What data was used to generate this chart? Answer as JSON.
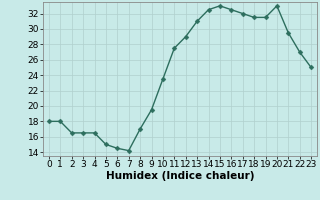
{
  "x": [
    0,
    1,
    2,
    3,
    4,
    5,
    6,
    7,
    8,
    9,
    10,
    11,
    12,
    13,
    14,
    15,
    16,
    17,
    18,
    19,
    20,
    21,
    22,
    23
  ],
  "y": [
    18,
    18,
    16.5,
    16.5,
    16.5,
    15,
    14.5,
    14.2,
    17,
    19.5,
    23.5,
    27.5,
    29,
    31,
    32.5,
    33,
    32.5,
    32,
    31.5,
    31.5,
    33,
    29.5,
    27,
    25
  ],
  "line_color": "#2d6e5e",
  "marker_color": "#2d6e5e",
  "bg_color": "#c8eae8",
  "grid_color": "#b0d0ce",
  "xlabel": "Humidex (Indice chaleur)",
  "ylim": [
    13.5,
    33.5
  ],
  "xlim": [
    -0.5,
    23.5
  ],
  "yticks": [
    14,
    16,
    18,
    20,
    22,
    24,
    26,
    28,
    30,
    32
  ],
  "xticks": [
    0,
    1,
    2,
    3,
    4,
    5,
    6,
    7,
    8,
    9,
    10,
    11,
    12,
    13,
    14,
    15,
    16,
    17,
    18,
    19,
    20,
    21,
    22,
    23
  ],
  "xlabel_fontsize": 7.5,
  "tick_fontsize": 6.5,
  "marker_size": 2.5,
  "line_width": 1.0
}
